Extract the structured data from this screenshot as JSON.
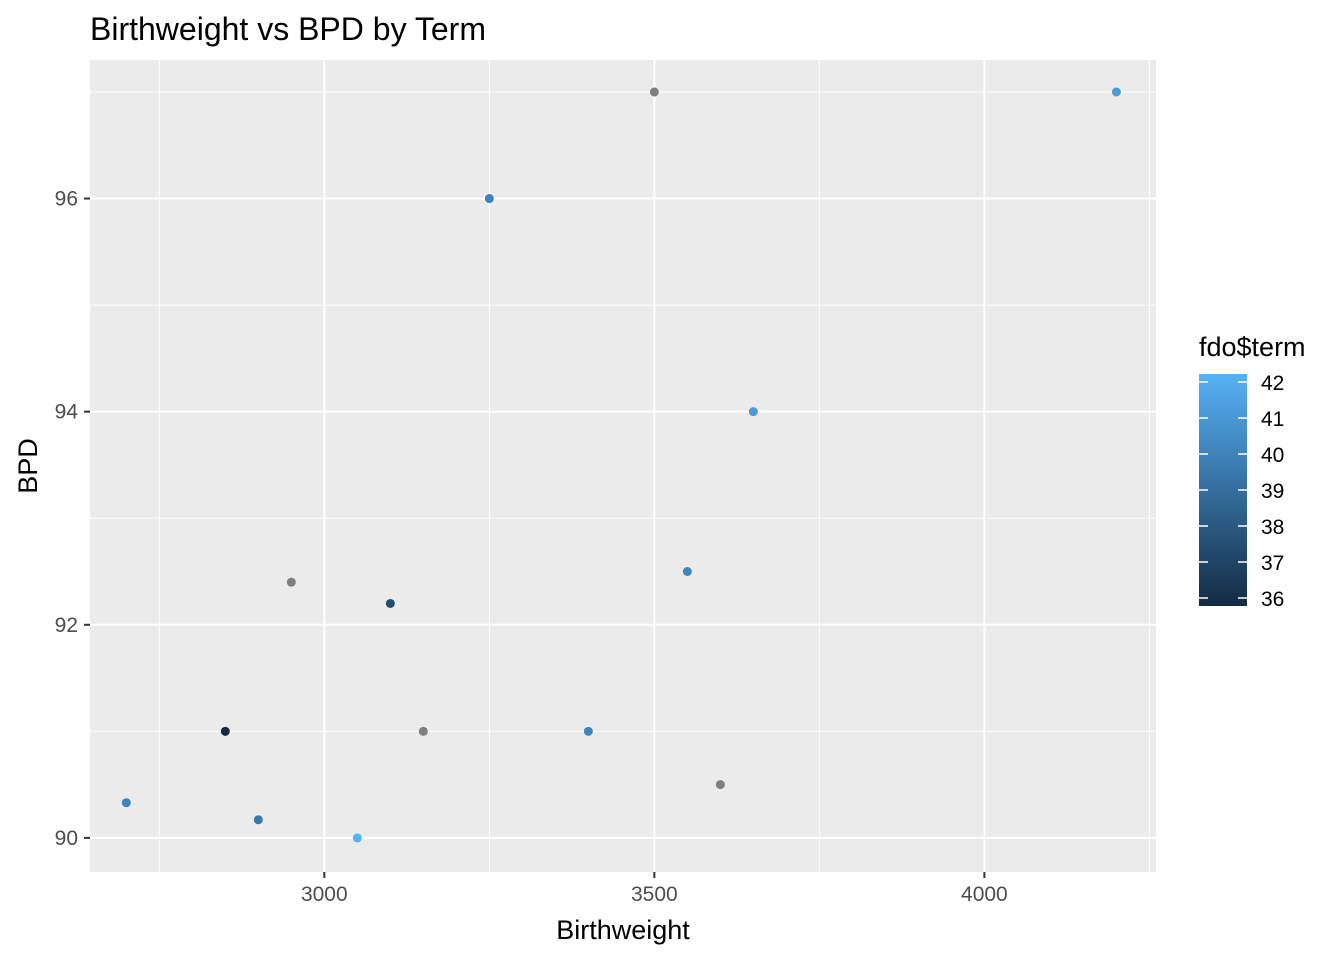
{
  "chart_data": {
    "type": "scatter",
    "title": "Birthweight vs BPD by Term",
    "xlabel": "Birthweight",
    "ylabel": "BPD",
    "xlim": [
      2645,
      4260
    ],
    "ylim": [
      89.68,
      97.3
    ],
    "x_ticks": [
      3000,
      3500,
      4000
    ],
    "x_tick_labels": [
      "3000",
      "3500",
      "4000"
    ],
    "y_ticks": [
      90,
      92,
      94,
      96
    ],
    "y_tick_labels": [
      "90",
      "92",
      "94",
      "96"
    ],
    "grid": true,
    "legend": {
      "title": "fdo$term",
      "placement": "right",
      "range": [
        36,
        42
      ],
      "ticks": [
        36,
        37,
        38,
        39,
        40,
        41,
        42
      ],
      "tick_labels": [
        "36",
        "37",
        "38",
        "39",
        "40",
        "41",
        "42"
      ],
      "low_color": "#132b43",
      "high_color": "#56b1f7"
    },
    "na_color": "#7f7f7f",
    "points": [
      {
        "x": 2700,
        "y": 90.33,
        "term": 40
      },
      {
        "x": 2850,
        "y": 91.0,
        "term": 36
      },
      {
        "x": 2900,
        "y": 90.17,
        "term": 39.5
      },
      {
        "x": 2950,
        "y": 92.4,
        "term": null
      },
      {
        "x": 3050,
        "y": 90.0,
        "term": 42
      },
      {
        "x": 3100,
        "y": 92.2,
        "term": 37.5
      },
      {
        "x": 3150,
        "y": 91.0,
        "term": null
      },
      {
        "x": 3250,
        "y": 96.0,
        "term": 40
      },
      {
        "x": 3400,
        "y": 91.0,
        "term": 40
      },
      {
        "x": 3500,
        "y": 97.0,
        "term": null
      },
      {
        "x": 3550,
        "y": 92.5,
        "term": 40
      },
      {
        "x": 3600,
        "y": 90.5,
        "term": null
      },
      {
        "x": 3650,
        "y": 94.0,
        "term": 41
      },
      {
        "x": 4200,
        "y": 97.0,
        "term": 41
      }
    ]
  }
}
